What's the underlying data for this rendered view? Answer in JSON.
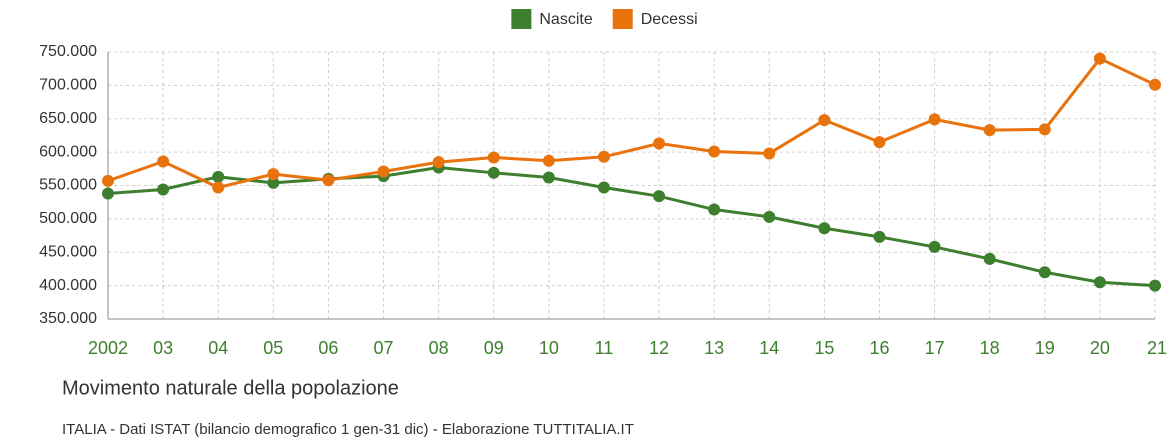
{
  "chart_data": {
    "type": "line",
    "title": "Movimento naturale della popolazione",
    "subtitle": "ITALIA - Dati ISTAT (bilancio demografico 1 gen-31 dic) - Elaborazione TUTTITALIA.IT",
    "categories": [
      "2002",
      "03",
      "04",
      "05",
      "06",
      "07",
      "08",
      "09",
      "10",
      "11",
      "12",
      "13",
      "14",
      "15",
      "16",
      "17",
      "18",
      "19",
      "20",
      "21"
    ],
    "series": [
      {
        "name": "Nascite",
        "color": "#3d7f2f",
        "values": [
          538000,
          544000,
          563000,
          554000,
          560000,
          564000,
          577000,
          569000,
          562000,
          547000,
          534000,
          514000,
          503000,
          486000,
          473000,
          458000,
          440000,
          420000,
          405000,
          400000
        ]
      },
      {
        "name": "Decessi",
        "color": "#e8720c",
        "values": [
          557000,
          586000,
          547000,
          567000,
          558000,
          571000,
          585000,
          592000,
          587000,
          593000,
          613000,
          601000,
          598000,
          648000,
          615000,
          649000,
          633000,
          634000,
          740000,
          701000
        ]
      }
    ],
    "ylim": [
      350000,
      750000
    ],
    "yticks": [
      {
        "value": 350000,
        "label": "350.000"
      },
      {
        "value": 400000,
        "label": "400.000"
      },
      {
        "value": 450000,
        "label": "450.000"
      },
      {
        "value": 500000,
        "label": "500.000"
      },
      {
        "value": 550000,
        "label": "550.000"
      },
      {
        "value": 600000,
        "label": "600.000"
      },
      {
        "value": 650000,
        "label": "650.000"
      },
      {
        "value": 700000,
        "label": "700.000"
      },
      {
        "value": 750000,
        "label": "750.000"
      }
    ],
    "grid": true,
    "legend": "top"
  }
}
